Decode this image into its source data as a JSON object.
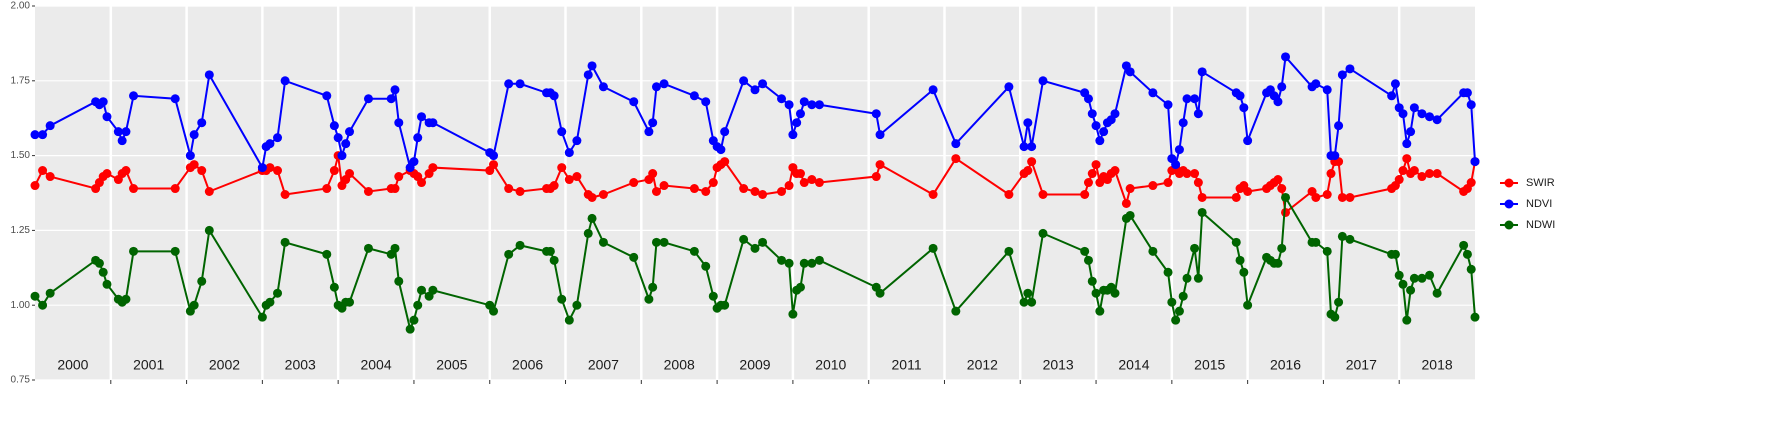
{
  "chart_data": {
    "type": "line",
    "x": [
      2000.0,
      2000.1,
      2000.2,
      2000.8,
      2000.85,
      2000.9,
      2000.95,
      2001.1,
      2001.15,
      2001.2,
      2001.3,
      2001.85,
      2002.05,
      2002.1,
      2002.2,
      2002.3,
      2003.0,
      2003.05,
      2003.1,
      2003.2,
      2003.3,
      2003.85,
      2003.95,
      2004.0,
      2004.05,
      2004.1,
      2004.15,
      2004.4,
      2004.7,
      2004.75,
      2004.8,
      2004.95,
      2005.0,
      2005.05,
      2005.1,
      2005.2,
      2005.25,
      2006.0,
      2006.05,
      2006.25,
      2006.4,
      2006.75,
      2006.8,
      2006.85,
      2006.95,
      2007.05,
      2007.15,
      2007.3,
      2007.35,
      2007.5,
      2007.9,
      2008.1,
      2008.15,
      2008.2,
      2008.3,
      2008.7,
      2008.85,
      2008.95,
      2009.0,
      2009.05,
      2009.1,
      2009.35,
      2009.5,
      2009.6,
      2009.85,
      2009.95,
      2010.0,
      2010.05,
      2010.1,
      2010.15,
      2010.25,
      2010.35,
      2011.1,
      2011.15,
      2011.85,
      2012.15,
      2012.85,
      2013.05,
      2013.1,
      2013.15,
      2013.3,
      2013.85,
      2013.9,
      2013.95,
      2014.0,
      2014.05,
      2014.1,
      2014.15,
      2014.2,
      2014.25,
      2014.4,
      2014.45,
      2014.75,
      2014.95,
      2015.0,
      2015.05,
      2015.1,
      2015.15,
      2015.2,
      2015.3,
      2015.35,
      2015.4,
      2015.85,
      2015.9,
      2015.95,
      2016.0,
      2016.25,
      2016.3,
      2016.35,
      2016.4,
      2016.45,
      2016.5,
      2016.85,
      2016.9,
      2017.05,
      2017.1,
      2017.15,
      2017.2,
      2017.25,
      2017.35,
      2017.9,
      2017.95,
      2018.0,
      2018.05,
      2018.1,
      2018.15,
      2018.2,
      2018.3,
      2018.4,
      2018.5,
      2018.85,
      2018.9,
      2018.95,
      2019.0
    ],
    "series": [
      {
        "name": "SWIR",
        "color": "#ff0000",
        "values": [
          1.4,
          1.45,
          1.43,
          1.39,
          1.41,
          1.43,
          1.44,
          1.42,
          1.44,
          1.45,
          1.39,
          1.39,
          1.46,
          1.47,
          1.45,
          1.38,
          1.45,
          1.45,
          1.46,
          1.45,
          1.37,
          1.39,
          1.45,
          1.5,
          1.4,
          1.42,
          1.44,
          1.38,
          1.39,
          1.39,
          1.43,
          1.45,
          1.44,
          1.43,
          1.41,
          1.44,
          1.46,
          1.45,
          1.47,
          1.39,
          1.38,
          1.39,
          1.39,
          1.4,
          1.46,
          1.42,
          1.43,
          1.37,
          1.36,
          1.37,
          1.41,
          1.42,
          1.44,
          1.38,
          1.4,
          1.39,
          1.38,
          1.41,
          1.46,
          1.47,
          1.48,
          1.39,
          1.38,
          1.37,
          1.38,
          1.4,
          1.46,
          1.44,
          1.44,
          1.41,
          1.42,
          1.41,
          1.43,
          1.47,
          1.37,
          1.49,
          1.37,
          1.44,
          1.45,
          1.48,
          1.37,
          1.37,
          1.41,
          1.44,
          1.47,
          1.41,
          1.43,
          1.42,
          1.44,
          1.45,
          1.34,
          1.39,
          1.4,
          1.41,
          1.45,
          1.46,
          1.44,
          1.45,
          1.44,
          1.44,
          1.41,
          1.36,
          1.36,
          1.39,
          1.4,
          1.38,
          1.39,
          1.4,
          1.41,
          1.42,
          1.39,
          1.31,
          1.38,
          1.36,
          1.37,
          1.44,
          1.48,
          1.48,
          1.36,
          1.36,
          1.39,
          1.4,
          1.42,
          1.45,
          1.49,
          1.44,
          1.45,
          1.43,
          1.44,
          1.44,
          1.38,
          1.39,
          1.41,
          1.48
        ]
      },
      {
        "name": "NDVI",
        "color": "#0000ff",
        "values": [
          1.57,
          1.57,
          1.6,
          1.68,
          1.67,
          1.68,
          1.63,
          1.58,
          1.55,
          1.58,
          1.7,
          1.69,
          1.5,
          1.57,
          1.61,
          1.77,
          1.46,
          1.53,
          1.54,
          1.56,
          1.75,
          1.7,
          1.6,
          1.56,
          1.5,
          1.54,
          1.58,
          1.69,
          1.69,
          1.72,
          1.61,
          1.46,
          1.48,
          1.56,
          1.63,
          1.61,
          1.61,
          1.51,
          1.5,
          1.74,
          1.74,
          1.71,
          1.71,
          1.7,
          1.58,
          1.51,
          1.55,
          1.77,
          1.8,
          1.73,
          1.68,
          1.58,
          1.61,
          1.73,
          1.74,
          1.7,
          1.68,
          1.55,
          1.53,
          1.52,
          1.58,
          1.75,
          1.72,
          1.74,
          1.69,
          1.67,
          1.57,
          1.61,
          1.64,
          1.68,
          1.67,
          1.67,
          1.64,
          1.57,
          1.72,
          1.54,
          1.73,
          1.53,
          1.61,
          1.53,
          1.75,
          1.71,
          1.69,
          1.64,
          1.6,
          1.55,
          1.58,
          1.61,
          1.62,
          1.64,
          1.8,
          1.78,
          1.71,
          1.67,
          1.49,
          1.47,
          1.52,
          1.61,
          1.69,
          1.69,
          1.64,
          1.78,
          1.71,
          1.7,
          1.66,
          1.55,
          1.71,
          1.72,
          1.7,
          1.68,
          1.73,
          1.83,
          1.73,
          1.74,
          1.72,
          1.5,
          1.5,
          1.6,
          1.77,
          1.79,
          1.7,
          1.74,
          1.66,
          1.64,
          1.54,
          1.58,
          1.66,
          1.64,
          1.63,
          1.62,
          1.71,
          1.71,
          1.67,
          1.48
        ]
      },
      {
        "name": "NDWI",
        "color": "#006400",
        "values": [
          1.03,
          1.0,
          1.04,
          1.15,
          1.14,
          1.11,
          1.07,
          1.02,
          1.01,
          1.02,
          1.18,
          1.18,
          0.98,
          1.0,
          1.08,
          1.25,
          0.96,
          1.0,
          1.01,
          1.04,
          1.21,
          1.17,
          1.06,
          1.0,
          0.99,
          1.01,
          1.01,
          1.19,
          1.17,
          1.19,
          1.08,
          0.92,
          0.95,
          1.0,
          1.05,
          1.03,
          1.05,
          1.0,
          0.98,
          1.17,
          1.2,
          1.18,
          1.18,
          1.15,
          1.02,
          0.95,
          1.0,
          1.24,
          1.29,
          1.21,
          1.16,
          1.02,
          1.06,
          1.21,
          1.21,
          1.18,
          1.13,
          1.03,
          0.99,
          1.0,
          1.0,
          1.22,
          1.19,
          1.21,
          1.15,
          1.14,
          0.97,
          1.05,
          1.06,
          1.14,
          1.14,
          1.15,
          1.06,
          1.04,
          1.19,
          0.98,
          1.18,
          1.01,
          1.04,
          1.01,
          1.24,
          1.18,
          1.15,
          1.08,
          1.04,
          0.98,
          1.05,
          1.05,
          1.06,
          1.04,
          1.29,
          1.3,
          1.18,
          1.11,
          1.01,
          0.95,
          0.98,
          1.03,
          1.09,
          1.19,
          1.09,
          1.31,
          1.21,
          1.15,
          1.11,
          1.0,
          1.16,
          1.15,
          1.14,
          1.14,
          1.19,
          1.36,
          1.21,
          1.21,
          1.18,
          0.97,
          0.96,
          1.01,
          1.23,
          1.22,
          1.17,
          1.17,
          1.1,
          1.07,
          0.95,
          1.05,
          1.09,
          1.09,
          1.1,
          1.04,
          1.2,
          1.17,
          1.12,
          0.96
        ]
      }
    ],
    "xlim": [
      2000,
      2019
    ],
    "year_labels": [
      2000,
      2001,
      2002,
      2003,
      2004,
      2005,
      2006,
      2007,
      2008,
      2009,
      2010,
      2011,
      2012,
      2013,
      2014,
      2015,
      2016,
      2017,
      2018
    ],
    "ylim": [
      0.75,
      2.0
    ],
    "yticks": [
      {
        "value": 0.75,
        "label": "0.75"
      },
      {
        "value": 1.0,
        "label": "1.00"
      },
      {
        "value": 1.25,
        "label": "1.25"
      },
      {
        "value": 1.5,
        "label": "1.50"
      },
      {
        "value": 1.75,
        "label": "1.75"
      },
      {
        "value": 2.0,
        "label": "2.00"
      }
    ],
    "grid": true,
    "legend": "right"
  }
}
